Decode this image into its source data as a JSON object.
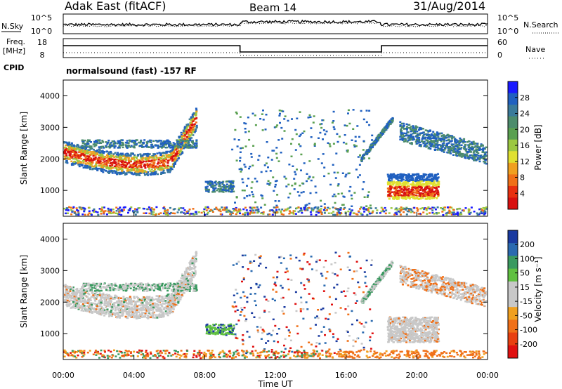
{
  "header": {
    "station": "Adak East (fitACF)",
    "beam": "Beam 14",
    "date": "31/Aug/2014"
  },
  "noise_panel": {
    "left_label": "N.Sky",
    "left_ticks": [
      "10^5",
      "10^0"
    ],
    "right_label": "N.Search",
    "right_ticks": [
      "10^5",
      "10^0"
    ]
  },
  "freq_panel": {
    "left_label_1": "Freq.",
    "left_label_2": "[MHz]",
    "left_ticks": [
      "18",
      "8"
    ],
    "right_label": "Nave",
    "right_ticks": [
      "60",
      "0"
    ],
    "cpid_label": "CPID",
    "cpid_text": "normalsound (fast) -157 RF"
  },
  "chart_data": [
    {
      "type": "heatmap",
      "name": "power",
      "ylabel": "Slant Range [km]",
      "xlabel": "",
      "yticks": [
        1000,
        2000,
        3000,
        4000
      ],
      "ylim": [
        180,
        4500
      ],
      "xlim": [
        0,
        24
      ],
      "colorbar": {
        "label": "Power [dB]",
        "ticks": [
          "28",
          "24",
          "20",
          "16",
          "12",
          "8",
          "4"
        ],
        "colors": [
          "#1a1aff",
          "#2060c0",
          "#3a7a9a",
          "#4c8c6c",
          "#5aa050",
          "#9cc840",
          "#e0e030",
          "#f0a020",
          "#f07018",
          "#e83010",
          "#d81010"
        ]
      },
      "regions": [
        {
          "label": "morning band",
          "x": [
            0.0,
            7.5
          ],
          "y_start": [
            2300,
            1700
          ],
          "y_mid": [
            2000,
            1850
          ],
          "peak_dB": 28
        },
        {
          "label": "evening patch",
          "x": [
            18.5,
            21.0
          ],
          "y": [
            750,
            1400
          ],
          "peak_dB": 28
        },
        {
          "label": "evening upper band",
          "x": [
            19.5,
            24.0
          ],
          "y": [
            2200,
            3000
          ],
          "peak_dB": 16
        }
      ]
    },
    {
      "type": "heatmap",
      "name": "velocity",
      "ylabel": "Slant Range [km]",
      "xlabel": "Time UT",
      "xticks": [
        "00:00",
        "04:00",
        "08:00",
        "12:00",
        "16:00",
        "20:00",
        "00:00"
      ],
      "yticks": [
        1000,
        2000,
        3000,
        4000
      ],
      "ylim": [
        180,
        4500
      ],
      "xlim": [
        0,
        24
      ],
      "colorbar": {
        "label": "Velocity [m s⁻¹]",
        "ticks": [
          "200",
          "100",
          "50",
          "15",
          "-15",
          "-50",
          "-100",
          "-200"
        ],
        "colors": [
          "#1a3aa0",
          "#2a6ab0",
          "#3a9a60",
          "#60c040",
          "#c8c8c8",
          "#c8c8c8",
          "#f0a020",
          "#f07018",
          "#e84010",
          "#e01010"
        ]
      },
      "regions": [
        {
          "label": "ground scatter band",
          "x": [
            0.0,
            7.5
          ],
          "velocity": "±15"
        },
        {
          "label": "green patch",
          "x": [
            8.0,
            9.5
          ],
          "y": [
            1000,
            1300
          ],
          "velocity": "15-50"
        },
        {
          "label": "near-range orange",
          "x": [
            15.5,
            24.0
          ],
          "y": [
            200,
            400
          ],
          "velocity": "-15 to -50"
        }
      ]
    }
  ]
}
